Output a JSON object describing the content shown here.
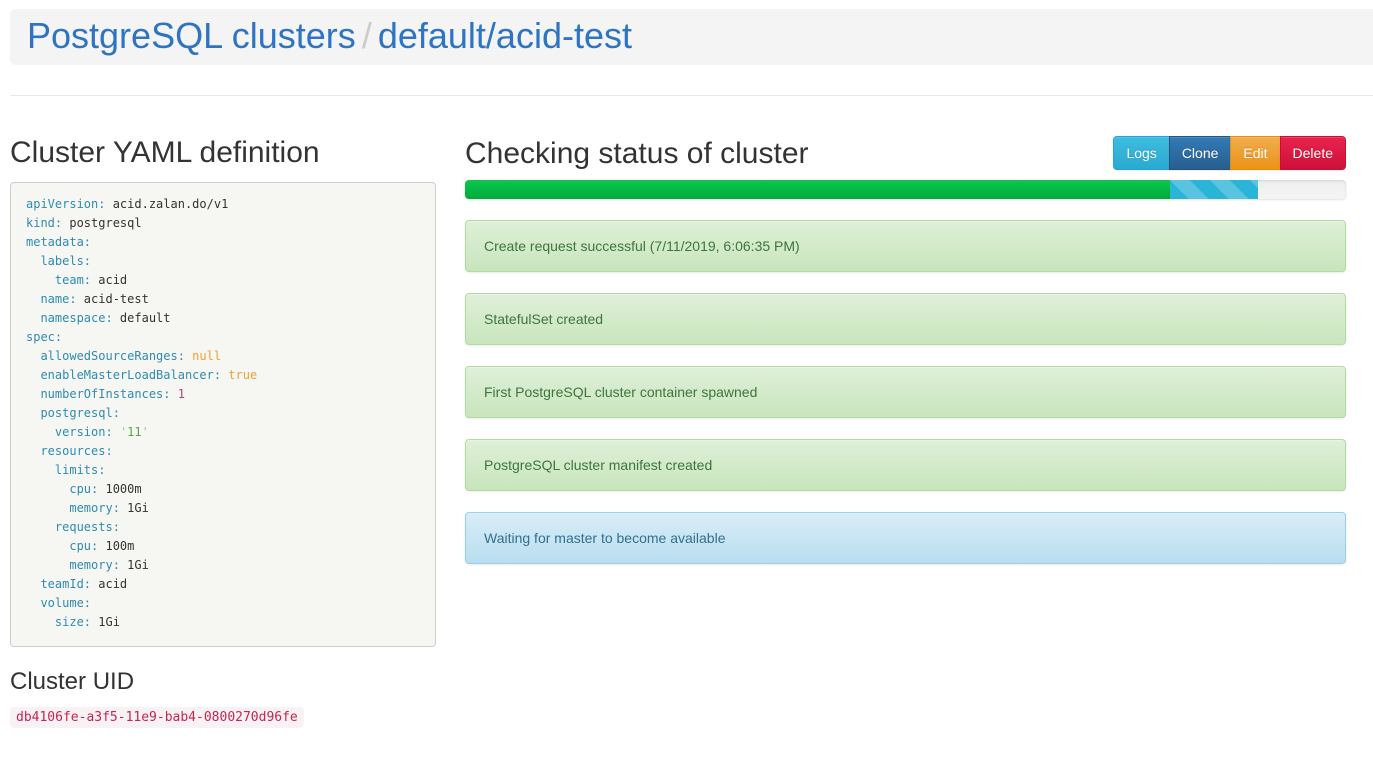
{
  "breadcrumb": {
    "separator": "/",
    "items": [
      {
        "label": "PostgreSQL clusters"
      },
      {
        "label": "default/acid-test"
      }
    ]
  },
  "left": {
    "yaml_title": "Cluster YAML definition",
    "uid_title": "Cluster UID",
    "uid_value": "db4106fe-a3f5-11e9-bab4-0800270d96fe",
    "yaml_lines": [
      [
        [
          "key",
          "apiVersion:"
        ],
        [
          "plain",
          " acid.zalan.do/v1"
        ]
      ],
      [
        [
          "key",
          "kind:"
        ],
        [
          "plain",
          " postgresql"
        ]
      ],
      [
        [
          "key",
          "metadata:"
        ]
      ],
      [
        [
          "key",
          "  labels:"
        ]
      ],
      [
        [
          "key",
          "    team:"
        ],
        [
          "plain",
          " acid"
        ]
      ],
      [
        [
          "key",
          "  name:"
        ],
        [
          "plain",
          " acid-test"
        ]
      ],
      [
        [
          "key",
          "  namespace:"
        ],
        [
          "plain",
          " default"
        ]
      ],
      [
        [
          "key",
          "spec:"
        ]
      ],
      [
        [
          "key",
          "  allowedSourceRanges:"
        ],
        [
          "literal",
          " null"
        ]
      ],
      [
        [
          "key",
          "  enableMasterLoadBalancer:"
        ],
        [
          "literal",
          " true"
        ]
      ],
      [
        [
          "key",
          "  numberOfInstances:"
        ],
        [
          "number",
          " 1"
        ]
      ],
      [
        [
          "key",
          "  postgresql:"
        ]
      ],
      [
        [
          "key",
          "    version:"
        ],
        [
          "plain",
          " "
        ],
        [
          "quote",
          "'"
        ],
        [
          "string",
          "11"
        ],
        [
          "quote",
          "'"
        ]
      ],
      [
        [
          "key",
          "  resources:"
        ]
      ],
      [
        [
          "key",
          "    limits:"
        ]
      ],
      [
        [
          "key",
          "      cpu:"
        ],
        [
          "plain",
          " 1000m"
        ]
      ],
      [
        [
          "key",
          "      memory:"
        ],
        [
          "plain",
          " 1Gi"
        ]
      ],
      [
        [
          "key",
          "    requests:"
        ]
      ],
      [
        [
          "key",
          "      cpu:"
        ],
        [
          "plain",
          " 100m"
        ]
      ],
      [
        [
          "key",
          "      memory:"
        ],
        [
          "plain",
          " 1Gi"
        ]
      ],
      [
        [
          "key",
          "  teamId:"
        ],
        [
          "plain",
          " acid"
        ]
      ],
      [
        [
          "key",
          "  volume:"
        ]
      ],
      [
        [
          "key",
          "    size:"
        ],
        [
          "plain",
          " 1Gi"
        ]
      ]
    ]
  },
  "status": {
    "title": "Checking status of cluster",
    "buttons": [
      {
        "label": "Logs",
        "style": "info",
        "name": "logs-button"
      },
      {
        "label": "Clone",
        "style": "primary",
        "name": "clone-button"
      },
      {
        "label": "Edit",
        "style": "warning",
        "name": "edit-button"
      },
      {
        "label": "Delete",
        "style": "danger",
        "name": "delete-button"
      }
    ],
    "progress": {
      "success_percent": 80,
      "info_percent": 10
    },
    "alerts": [
      {
        "type": "success",
        "text": "Create request successful (7/11/2019, 6:06:35 PM)"
      },
      {
        "type": "success",
        "text": "StatefulSet created"
      },
      {
        "type": "success",
        "text": "First PostgreSQL cluster container spawned"
      },
      {
        "type": "success",
        "text": "PostgreSQL cluster manifest created"
      },
      {
        "type": "info",
        "text": "Waiting for master to become available"
      }
    ]
  },
  "colors": {
    "link_blue": "#2d74c4",
    "progress_success": "#00b43e",
    "progress_info": "#29b4d8",
    "alert_success_bg": "#dff0d8",
    "alert_success_text": "#3c763d",
    "alert_info_bg": "#d9edf7",
    "alert_info_text": "#31708f",
    "btn_info": "#31b0d5",
    "btn_primary": "#337ab7",
    "btn_warning": "#f0ad4e",
    "btn_danger": "#da1843",
    "uid_code_text": "#c7254e",
    "uid_code_bg": "#f9f2f4",
    "yaml_key": "#2f8bb0",
    "yaml_literal": "#f0a030",
    "yaml_number": "#a3497c",
    "yaml_string": "#4fa946"
  }
}
